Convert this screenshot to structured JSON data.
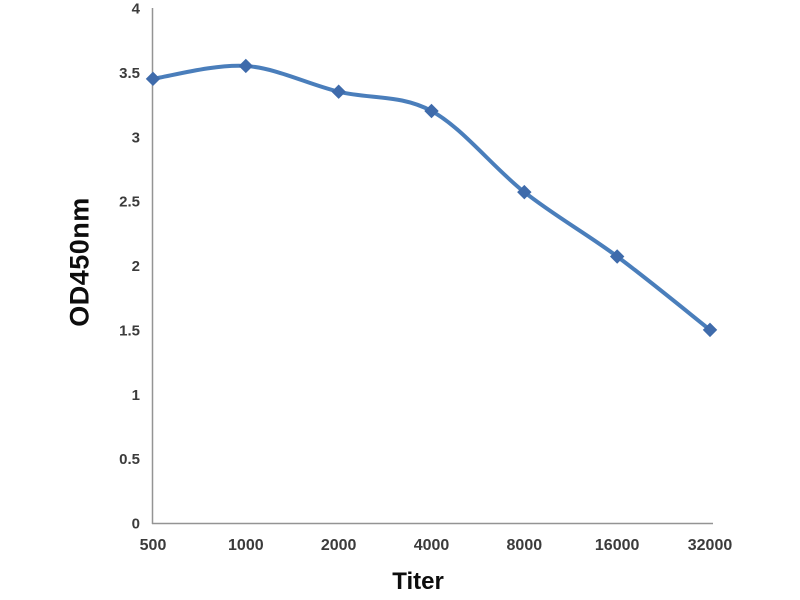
{
  "page": {
    "background_color": "#ffffff"
  },
  "chart_data": {
    "type": "line",
    "title": "",
    "xlabel": "Titer",
    "ylabel": "OD450nm",
    "categories": [
      "500",
      "1000",
      "2000",
      "4000",
      "8000",
      "16000",
      "32000"
    ],
    "series": [
      {
        "name": "OD450nm",
        "values": [
          3.45,
          3.55,
          3.35,
          3.2,
          2.57,
          2.07,
          1.5
        ]
      }
    ],
    "ylim": [
      0,
      4
    ],
    "y_ticks": [
      0,
      0.5,
      1,
      1.5,
      2,
      2.5,
      3,
      3.5,
      4
    ],
    "grid": false,
    "legend": false,
    "smooth_line": true,
    "marker_shape": "diamond",
    "line_color": "#4a7ebb",
    "marker_color": "#3f6bab",
    "axis_color": "#949494",
    "tick_label_color": "#3b3b3b"
  }
}
